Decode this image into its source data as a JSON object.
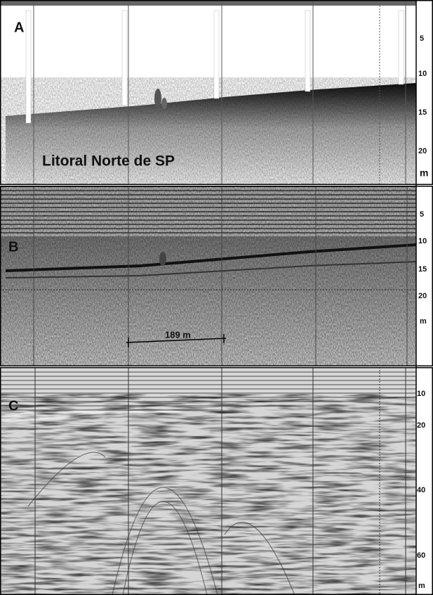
{
  "panels": [
    {
      "label": "A",
      "depth_labels": [
        "5",
        "10",
        "15",
        "20",
        "m"
      ],
      "caption": "Litoral Norte de SP"
    },
    {
      "label": "B",
      "depth_labels": [
        "5",
        "10",
        "15",
        "20",
        "m"
      ],
      "scale_bar": "189 m"
    },
    {
      "label": "C",
      "depth_labels": [
        "10",
        "20",
        "40",
        "60",
        "m"
      ]
    }
  ]
}
